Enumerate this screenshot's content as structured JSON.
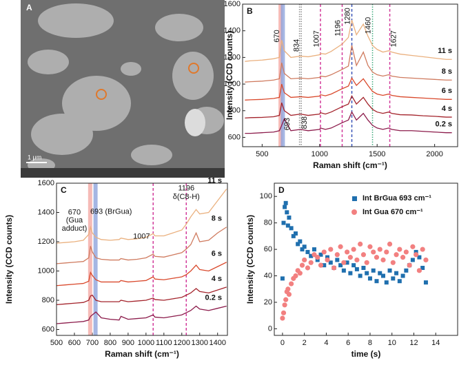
{
  "panel_a": {
    "label": "A",
    "scale_bar": "1 μm"
  },
  "chart_data": [
    {
      "type": "spectra",
      "panel_label": "B",
      "xlabel": "Raman shift (cm⁻¹)",
      "ylabel": "Intensity (CCD counts)",
      "xlim": [
        330,
        2200
      ],
      "xticks": [
        500,
        1000,
        1500,
        2000
      ],
      "ylim": [
        530,
        1600
      ],
      "yticks": [
        600,
        800,
        1000,
        1200,
        1400,
        1600
      ],
      "annotation_angle": -90,
      "vlines": [
        {
          "x": 660,
          "color": "#f4aaa5",
          "style": "band"
        },
        {
          "x": 680,
          "color": "#8ea4dc",
          "style": "band"
        },
        {
          "x": 825,
          "color": "#888888",
          "style": "dotted"
        },
        {
          "x": 840,
          "color": "#888888",
          "style": "dotted"
        },
        {
          "x": 1007,
          "color": "#d23a9a",
          "style": "dashed"
        },
        {
          "x": 1196,
          "color": "#d23a9a",
          "style": "dashed"
        },
        {
          "x": 1280,
          "color": "#3a55b8",
          "style": "dashed"
        },
        {
          "x": 1460,
          "color": "#3aa87a",
          "style": "dotted"
        },
        {
          "x": 1610,
          "color": "#d23a9a",
          "style": "dashed"
        }
      ],
      "annotations": [
        {
          "x": 630,
          "y": 1360,
          "label": "670"
        },
        {
          "x": 800,
          "y": 1290,
          "label": "834"
        },
        {
          "x": 975,
          "y": 1340,
          "label": "1007"
        },
        {
          "x": 1160,
          "y": 1420,
          "label": "1196"
        },
        {
          "x": 1245,
          "y": 1510,
          "label": "1280"
        },
        {
          "x": 1425,
          "y": 1440,
          "label": "1460"
        },
        {
          "x": 1645,
          "y": 1340,
          "label": "1627"
        },
        {
          "x": 720,
          "y": 700,
          "label": "693"
        },
        {
          "x": 870,
          "y": 710,
          "label": "838"
        }
      ],
      "x": [
        350,
        400,
        500,
        600,
        650,
        670,
        693,
        750,
        834,
        900,
        1000,
        1007,
        1050,
        1100,
        1196,
        1250,
        1280,
        1320,
        1380,
        1420,
        1460,
        1500,
        1550,
        1600,
        1627,
        1700,
        1800,
        1900,
        2000,
        2100,
        2150
      ],
      "series": [
        {
          "name": "0.2 s",
          "color": "#8b1a4a",
          "values": [
            630,
            630,
            635,
            640,
            650,
            690,
            740,
            650,
            660,
            650,
            660,
            670,
            660,
            670,
            710,
            730,
            790,
            730,
            780,
            730,
            690,
            670,
            660,
            670,
            660,
            650,
            650,
            645,
            640,
            635,
            635
          ]
        },
        {
          "name": "4 s",
          "color": "#a3222a",
          "values": [
            745,
            748,
            750,
            755,
            765,
            860,
            800,
            765,
            775,
            765,
            775,
            785,
            775,
            790,
            830,
            850,
            910,
            850,
            900,
            850,
            810,
            790,
            780,
            790,
            780,
            770,
            768,
            762,
            758,
            752,
            752
          ]
        },
        {
          "name": "6 s",
          "color": "#d9482b",
          "values": [
            880,
            882,
            885,
            892,
            900,
            1000,
            935,
            900,
            905,
            900,
            910,
            920,
            912,
            925,
            965,
            985,
            1045,
            990,
            1040,
            990,
            945,
            925,
            915,
            925,
            915,
            905,
            900,
            895,
            890,
            885,
            885
          ]
        },
        {
          "name": "8 s",
          "color": "#cf7a5e",
          "values": [
            1015,
            1018,
            1022,
            1030,
            1040,
            1160,
            1080,
            1040,
            1045,
            1040,
            1050,
            1060,
            1055,
            1070,
            1110,
            1135,
            1290,
            1140,
            1240,
            1140,
            1090,
            1070,
            1060,
            1070,
            1060,
            1050,
            1045,
            1040,
            1035,
            1030,
            1030
          ]
        },
        {
          "name": "11 s",
          "color": "#eab07e",
          "values": [
            1170,
            1175,
            1180,
            1190,
            1200,
            1330,
            1250,
            1200,
            1210,
            1205,
            1220,
            1230,
            1225,
            1245,
            1300,
            1350,
            1480,
            1370,
            1450,
            1360,
            1290,
            1260,
            1240,
            1250,
            1240,
            1225,
            1215,
            1205,
            1195,
            1185,
            1185
          ]
        }
      ]
    },
    {
      "type": "spectra",
      "panel_label": "C",
      "xlabel": "Raman shift (cm⁻¹)",
      "ylabel": "Intensity (CCD counts)",
      "xlim": [
        500,
        1455
      ],
      "xticks": [
        500,
        600,
        700,
        800,
        900,
        1000,
        1100,
        1200,
        1300,
        1400
      ],
      "ylim": [
        560,
        1600
      ],
      "yticks": [
        600,
        800,
        1000,
        1200,
        1400,
        1600
      ],
      "annotation_angle": 0,
      "vlines": [
        {
          "x": 688,
          "color": "#f4aaa5",
          "style": "band"
        },
        {
          "x": 718,
          "color": "#8ea4dc",
          "style": "band"
        },
        {
          "x": 1040,
          "color": "#d23a9a",
          "style": "dashed"
        },
        {
          "x": 1225,
          "color": "#d23a9a",
          "style": "dashed"
        }
      ],
      "annotations": [
        {
          "x": 600,
          "y": 1400,
          "label": "670"
        },
        {
          "x": 600,
          "y": 1345,
          "label": "(Gua"
        },
        {
          "x": 600,
          "y": 1290,
          "label": "adduct)"
        },
        {
          "x": 805,
          "y": 1405,
          "label": "693 (BrGua)"
        },
        {
          "x": 975,
          "y": 1235,
          "label": "1007"
        },
        {
          "x": 1225,
          "y": 1565,
          "label": "1196"
        },
        {
          "x": 1225,
          "y": 1505,
          "label": "δ(C8-H)"
        }
      ],
      "x": [
        500,
        550,
        600,
        650,
        680,
        690,
        700,
        720,
        750,
        800,
        850,
        860,
        900,
        950,
        1000,
        1040,
        1050,
        1100,
        1150,
        1200,
        1225,
        1250,
        1280,
        1300,
        1350,
        1400,
        1450
      ],
      "series": [
        {
          "name": "0.2 s",
          "color": "#8b1a4a",
          "values": [
            640,
            645,
            650,
            655,
            665,
            690,
            700,
            720,
            680,
            670,
            665,
            690,
            670,
            675,
            680,
            700,
            685,
            680,
            690,
            700,
            715,
            730,
            760,
            740,
            730,
            745,
            760
          ]
        },
        {
          "name": "4 s",
          "color": "#a3222a",
          "values": [
            770,
            775,
            780,
            785,
            800,
            830,
            835,
            800,
            790,
            790,
            790,
            800,
            790,
            795,
            800,
            815,
            805,
            800,
            810,
            820,
            835,
            850,
            880,
            860,
            850,
            870,
            890
          ]
        },
        {
          "name": "6 s",
          "color": "#d9482b",
          "values": [
            900,
            905,
            910,
            915,
            930,
            990,
            970,
            940,
            925,
            925,
            925,
            935,
            925,
            930,
            935,
            960,
            945,
            940,
            950,
            960,
            975,
            1000,
            1040,
            1010,
            1000,
            1030,
            1060
          ]
        },
        {
          "name": "8 s",
          "color": "#cf7a5e",
          "values": [
            1050,
            1055,
            1060,
            1065,
            1090,
            1170,
            1130,
            1090,
            1080,
            1075,
            1075,
            1085,
            1075,
            1080,
            1090,
            1115,
            1100,
            1095,
            1110,
            1125,
            1150,
            1180,
            1260,
            1200,
            1210,
            1260,
            1300
          ]
        },
        {
          "name": "11 s",
          "color": "#eab07e",
          "values": [
            1190,
            1195,
            1200,
            1210,
            1250,
            1300,
            1260,
            1230,
            1215,
            1210,
            1215,
            1225,
            1215,
            1220,
            1230,
            1255,
            1240,
            1240,
            1260,
            1280,
            1320,
            1370,
            1420,
            1390,
            1400,
            1480,
            1560
          ]
        }
      ]
    },
    {
      "type": "scatter",
      "panel_label": "D",
      "xlabel": "time (s)",
      "ylabel": "Intensity (CCD counts)",
      "xlim": [
        -0.75,
        16
      ],
      "xticks": [
        0,
        2,
        4,
        6,
        8,
        10,
        12,
        14
      ],
      "ylim": [
        -5,
        110
      ],
      "yticks": [
        0,
        20,
        40,
        60,
        80,
        100
      ],
      "legend": "upper right",
      "x": [
        0,
        0.1,
        0.2,
        0.3,
        0.4,
        0.5,
        0.6,
        0.8,
        1,
        1.2,
        1.4,
        1.6,
        1.8,
        2,
        2.3,
        2.6,
        2.9,
        3.2,
        3.5,
        3.8,
        4.1,
        4.4,
        4.7,
        5,
        5.3,
        5.6,
        5.9,
        6.2,
        6.5,
        6.8,
        7.1,
        7.4,
        7.7,
        8,
        8.3,
        8.6,
        8.9,
        9.2,
        9.5,
        9.8,
        10.1,
        10.4,
        10.7,
        11,
        11.3,
        11.6,
        11.9,
        12.2,
        12.5,
        12.8,
        13.1
      ],
      "series": [
        {
          "name": "Int BrGua 693 cm⁻¹",
          "color": "#1f6fae",
          "marker": "square",
          "values": [
            38,
            80,
            92,
            95,
            88,
            78,
            84,
            76,
            70,
            72,
            64,
            66,
            60,
            62,
            58,
            55,
            60,
            52,
            56,
            48,
            54,
            50,
            46,
            52,
            48,
            44,
            50,
            42,
            48,
            45,
            40,
            46,
            42,
            38,
            44,
            36,
            42,
            40,
            35,
            44,
            38,
            42,
            36,
            40,
            44,
            48,
            52,
            58,
            54,
            46,
            35
          ]
        },
        {
          "name": "Int Gua 670 cm⁻¹",
          "color": "#f28080",
          "marker": "circle",
          "values": [
            8,
            12,
            18,
            22,
            28,
            30,
            26,
            34,
            38,
            40,
            44,
            42,
            48,
            52,
            46,
            50,
            56,
            54,
            48,
            58,
            52,
            60,
            46,
            56,
            62,
            50,
            58,
            54,
            60,
            52,
            64,
            56,
            50,
            62,
            58,
            54,
            60,
            52,
            58,
            64,
            50,
            56,
            60,
            54,
            58,
            48,
            62,
            56,
            44,
            60,
            52
          ]
        }
      ]
    }
  ]
}
